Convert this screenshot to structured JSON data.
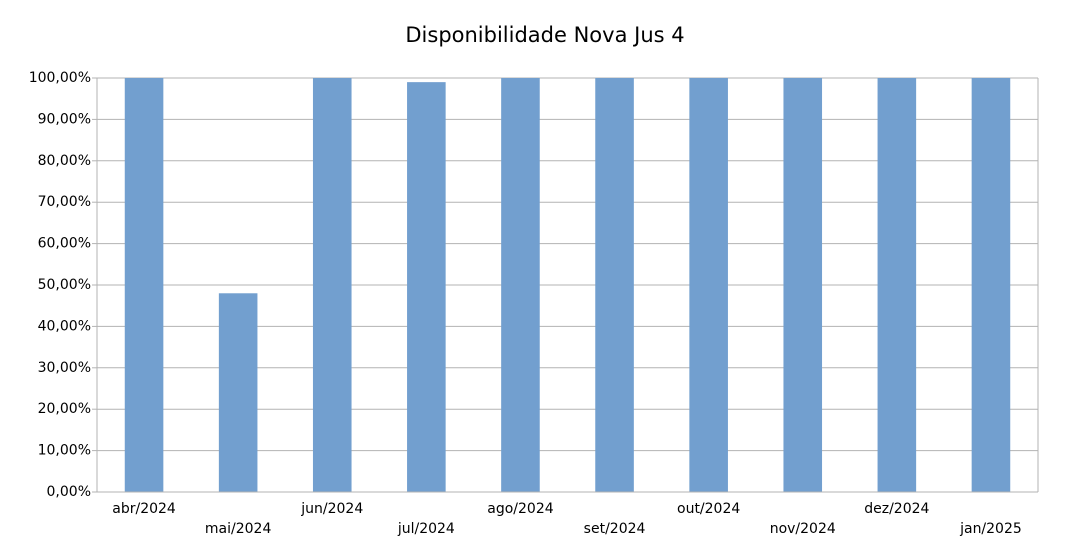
{
  "chart_data": {
    "type": "bar",
    "title": "Disponibilidade Nova Jus 4",
    "categories": [
      "abr/2024",
      "mai/2024",
      "jun/2024",
      "jul/2024",
      "ago/2024",
      "set/2024",
      "out/2024",
      "nov/2024",
      "dez/2024",
      "jan/2025"
    ],
    "values": [
      100,
      48,
      100,
      99,
      100,
      100,
      100,
      100,
      100,
      100
    ],
    "color": "#729fcf",
    "ylim": [
      0,
      100
    ],
    "yticks": [
      {
        "value": 0,
        "label": "0,00%"
      },
      {
        "value": 10,
        "label": "10,00%"
      },
      {
        "value": 20,
        "label": "20,00%"
      },
      {
        "value": 30,
        "label": "30,00%"
      },
      {
        "value": 40,
        "label": "40,00%"
      },
      {
        "value": 50,
        "label": "50,00%"
      },
      {
        "value": 60,
        "label": "60,00%"
      },
      {
        "value": 70,
        "label": "70,00%"
      },
      {
        "value": 80,
        "label": "80,00%"
      },
      {
        "value": 90,
        "label": "90,00%"
      },
      {
        "value": 100,
        "label": "100,00%"
      }
    ],
    "grid": true
  }
}
